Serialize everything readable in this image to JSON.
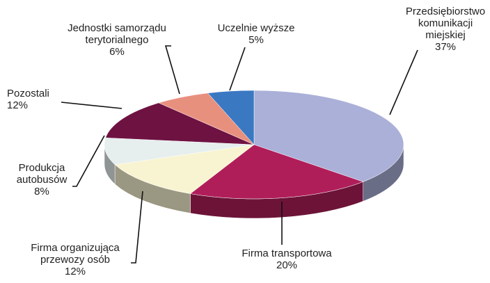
{
  "chart_data": {
    "type": "pie3d",
    "categories": [
      "Przedsiębiorstwo\nkomunikacji miejskiej",
      "Firma transportowa",
      "Firma organizująca\nprzewozy osób",
      "Produkcja\nautobusów",
      "Pozostali",
      "Jednostki samorządu\nterytorialnego",
      "Uczelnie wyższe"
    ],
    "values": [
      37,
      20,
      12,
      8,
      12,
      6,
      5
    ],
    "value_labels": [
      "37%",
      "20%",
      "12%",
      "8%",
      "12%",
      "6%",
      "5%"
    ],
    "colors": [
      "#aab0d8",
      "#b01e5a",
      "#f8f4d2",
      "#e6eeee",
      "#6e1242",
      "#e8907e",
      "#3a78c2"
    ]
  }
}
